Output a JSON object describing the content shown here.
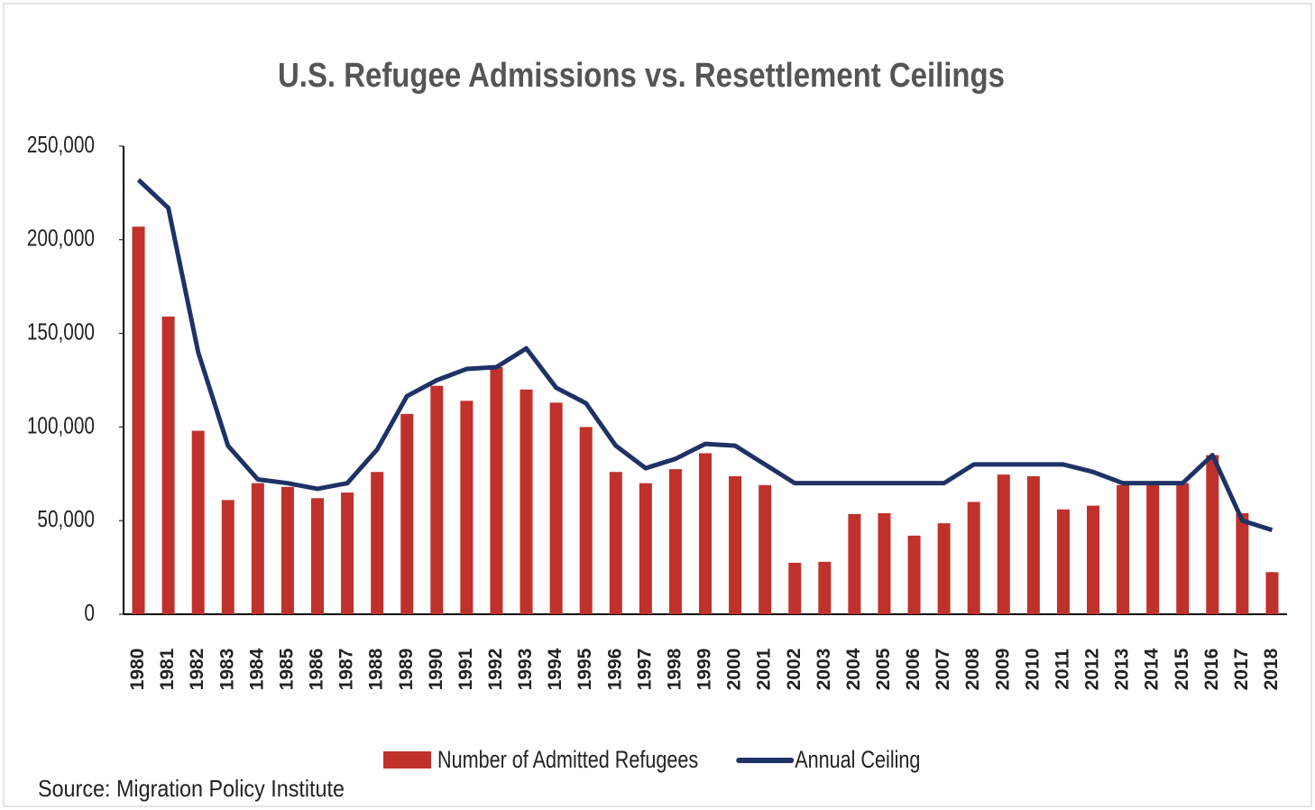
{
  "chart_data": {
    "type": "bar_line",
    "title": "U.S. Refugee Admissions vs. Resettlement Ceilings",
    "source": "Source: Migration Policy Institute",
    "categories": [
      "1980",
      "1981",
      "1982",
      "1983",
      "1984",
      "1985",
      "1986",
      "1987",
      "1988",
      "1989",
      "1990",
      "1991",
      "1992",
      "1993",
      "1994",
      "1995",
      "1996",
      "1997",
      "1998",
      "1999",
      "2000",
      "2001",
      "2002",
      "2003",
      "2004",
      "2005",
      "2006",
      "2007",
      "2008",
      "2009",
      "2010",
      "2011",
      "2012",
      "2013",
      "2014",
      "2015",
      "2016",
      "2017",
      "2018"
    ],
    "series": [
      {
        "name": "Number of Admitted Refugees",
        "type": "bar",
        "color": "#c0312b",
        "values": [
          207000,
          159000,
          98000,
          61000,
          70000,
          68000,
          62000,
          65000,
          76000,
          107000,
          122000,
          114000,
          132000,
          120000,
          113000,
          100000,
          76000,
          70000,
          77500,
          86000,
          73700,
          69000,
          27500,
          28000,
          53500,
          54000,
          42000,
          48600,
          60000,
          74600,
          73700,
          56000,
          58000,
          69000,
          69000,
          70000,
          85000,
          54000,
          22500
        ]
      },
      {
        "name": "Annual Ceiling",
        "type": "line",
        "color": "#1f3266",
        "values": [
          232000,
          217000,
          140000,
          90000,
          72000,
          70000,
          67000,
          70000,
          88000,
          116500,
          125000,
          131000,
          132000,
          142000,
          121000,
          112700,
          90000,
          78000,
          83000,
          91000,
          90000,
          80000,
          70000,
          70000,
          70000,
          70000,
          70000,
          70000,
          80000,
          80000,
          80000,
          80000,
          76000,
          70000,
          70000,
          70000,
          85000,
          50000,
          45000
        ]
      }
    ],
    "ylim": [
      0,
      250000
    ],
    "yticks": [
      0,
      {
        "value": 50000,
        "label": "50,000"
      },
      {
        "value": 100000,
        "label": "100,000"
      },
      {
        "value": 150000,
        "label": "150,000"
      },
      {
        "value": 200000,
        "label": "200,000"
      },
      {
        "value": 250000,
        "label": "250,000"
      }
    ],
    "grid": false,
    "legend": "bottom"
  }
}
